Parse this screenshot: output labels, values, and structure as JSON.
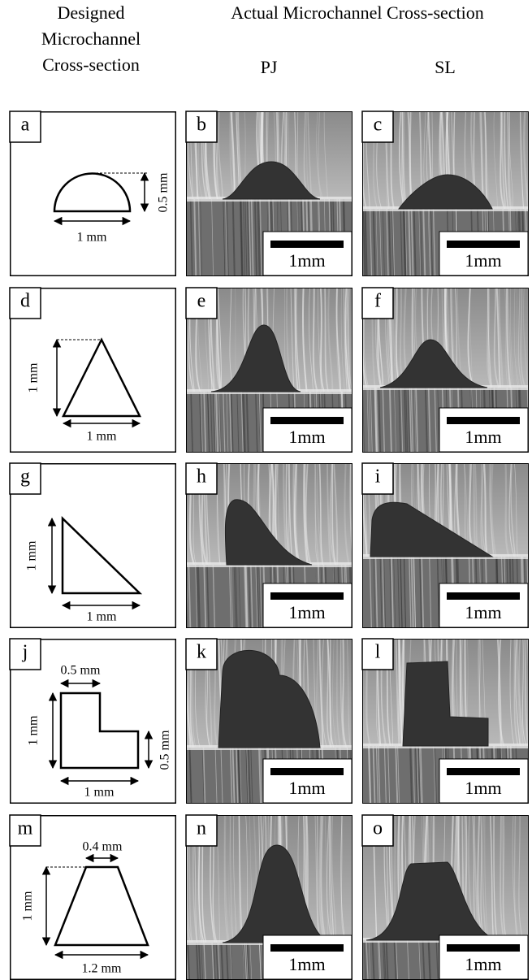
{
  "header": {
    "designed": [
      "Designed",
      "Microchannel",
      "Cross-section"
    ],
    "actual": "Actual Microchannel Cross-section",
    "columns": [
      "PJ",
      "SL"
    ]
  },
  "rows": [
    {
      "designed": {
        "letter": "a",
        "dims": [
          "0.5 mm",
          "1 mm"
        ]
      },
      "pj": {
        "letter": "b",
        "scale": "1mm"
      },
      "sl": {
        "letter": "c",
        "scale": "1mm"
      }
    },
    {
      "designed": {
        "letter": "d",
        "dims": [
          "1 mm",
          "1 mm"
        ]
      },
      "pj": {
        "letter": "e",
        "scale": "1mm"
      },
      "sl": {
        "letter": "f",
        "scale": "1mm"
      }
    },
    {
      "designed": {
        "letter": "g",
        "dims": [
          "1 mm",
          "1 mm"
        ]
      },
      "pj": {
        "letter": "h",
        "scale": "1mm"
      },
      "sl": {
        "letter": "i",
        "scale": "1mm"
      }
    },
    {
      "designed": {
        "letter": "j",
        "dims": [
          "0.5 mm",
          "1 mm",
          "0.5 mm",
          "1 mm"
        ]
      },
      "pj": {
        "letter": "k",
        "scale": "1mm"
      },
      "sl": {
        "letter": "l",
        "scale": "1mm"
      }
    },
    {
      "designed": {
        "letter": "m",
        "dims": [
          "0.4 mm",
          "1 mm",
          "1.2 mm"
        ]
      },
      "pj": {
        "letter": "n",
        "scale": "1mm"
      },
      "sl": {
        "letter": "o",
        "scale": "1mm"
      }
    }
  ]
}
